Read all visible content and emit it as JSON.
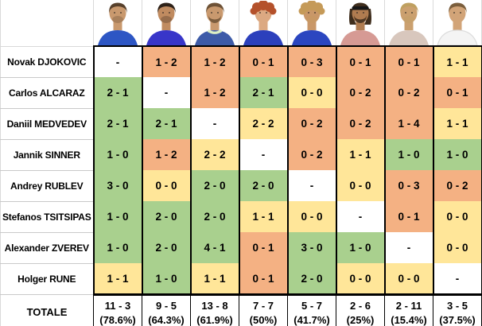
{
  "table": {
    "corner_label": "",
    "colors": {
      "win": "#A9D08E",
      "loss": "#F4B183",
      "tie": "#FFE699",
      "none": "#FFFFFF"
    },
    "grid_black": "#000000",
    "grid_gray": "#D9D9D9",
    "players": [
      {
        "id": "djokovic",
        "name": "Novak DJOKOVIC",
        "avatar": {
          "skin": "#C9996E",
          "hair": "#57402B",
          "shirt": "#2D56C4",
          "style": "short",
          "beard": "light"
        }
      },
      {
        "id": "alcaraz",
        "name": "Carlos ALCARAZ",
        "avatar": {
          "skin": "#C08B60",
          "hair": "#2E2118",
          "shirt": "#3836C9",
          "style": "short",
          "beard": "light"
        }
      },
      {
        "id": "medvedev",
        "name": "Daniil MEDVEDEV",
        "avatar": {
          "skin": "#C9996E",
          "hair": "#6E5236",
          "shirt": "#3D5BA8",
          "style": "short",
          "beard": "full",
          "collar": "#DCEFC4"
        }
      },
      {
        "id": "sinner",
        "name": "Jannik SINNER",
        "avatar": {
          "skin": "#DCA982",
          "hair": "#B4512B",
          "shirt": "#2C40BC",
          "style": "curly",
          "beard": "none"
        }
      },
      {
        "id": "rublev",
        "name": "Andrey RUBLEV",
        "avatar": {
          "skin": "#C99768",
          "hair": "#C59A58",
          "shirt": "#2B46C0",
          "style": "curly",
          "beard": "light"
        }
      },
      {
        "id": "tsitsipas",
        "name": "Stefanos TSITSIPAS",
        "avatar": {
          "skin": "#B07C50",
          "hair": "#3F2E1D",
          "shirt": "#D69A94",
          "style": "headband",
          "beard": "full",
          "headband": "#161616"
        }
      },
      {
        "id": "zverev",
        "name": "Alexander ZVEREV",
        "avatar": {
          "skin": "#CBA06F",
          "hair": "#BFA060",
          "shirt": "#D8C7BD",
          "style": "short",
          "beard": "light"
        }
      },
      {
        "id": "rune",
        "name": "Holger RUNE",
        "avatar": {
          "skin": "#D2A478",
          "hair": "#7B5E3C",
          "shirt": "#F4F4F4",
          "style": "short",
          "beard": "none",
          "shirtStroke": "#DCDCDC"
        }
      }
    ],
    "rows": [
      {
        "cells": [
          {
            "v": "-",
            "c": "none"
          },
          {
            "v": "1 - 2",
            "c": "loss"
          },
          {
            "v": "1 - 2",
            "c": "loss"
          },
          {
            "v": "0 - 1",
            "c": "loss"
          },
          {
            "v": "0 - 3",
            "c": "loss"
          },
          {
            "v": "0 - 1",
            "c": "loss"
          },
          {
            "v": "0 - 1",
            "c": "loss"
          },
          {
            "v": "1 - 1",
            "c": "tie"
          }
        ]
      },
      {
        "cells": [
          {
            "v": "2 - 1",
            "c": "win"
          },
          {
            "v": "-",
            "c": "none"
          },
          {
            "v": "1 - 2",
            "c": "loss"
          },
          {
            "v": "2 - 1",
            "c": "win"
          },
          {
            "v": "0 - 0",
            "c": "tie"
          },
          {
            "v": "0 - 2",
            "c": "loss"
          },
          {
            "v": "0 - 2",
            "c": "loss"
          },
          {
            "v": "0 - 1",
            "c": "loss"
          }
        ]
      },
      {
        "cells": [
          {
            "v": "2 - 1",
            "c": "win"
          },
          {
            "v": "2 - 1",
            "c": "win"
          },
          {
            "v": "-",
            "c": "none"
          },
          {
            "v": "2 - 2",
            "c": "tie"
          },
          {
            "v": "0 - 2",
            "c": "loss"
          },
          {
            "v": "0 - 2",
            "c": "loss"
          },
          {
            "v": "1 - 4",
            "c": "loss"
          },
          {
            "v": "1 - 1",
            "c": "tie"
          }
        ]
      },
      {
        "cells": [
          {
            "v": "1 - 0",
            "c": "win"
          },
          {
            "v": "1 - 2",
            "c": "loss"
          },
          {
            "v": "2 - 2",
            "c": "tie"
          },
          {
            "v": "-",
            "c": "none"
          },
          {
            "v": "0 - 2",
            "c": "loss"
          },
          {
            "v": "1 - 1",
            "c": "tie"
          },
          {
            "v": "1 - 0",
            "c": "win"
          },
          {
            "v": "1 - 0",
            "c": "win"
          }
        ]
      },
      {
        "cells": [
          {
            "v": "3 - 0",
            "c": "win"
          },
          {
            "v": "0 - 0",
            "c": "tie"
          },
          {
            "v": "2 - 0",
            "c": "win"
          },
          {
            "v": "2 - 0",
            "c": "win"
          },
          {
            "v": "-",
            "c": "none"
          },
          {
            "v": "0 - 0",
            "c": "tie"
          },
          {
            "v": "0 - 3",
            "c": "loss"
          },
          {
            "v": "0 - 2",
            "c": "loss"
          }
        ]
      },
      {
        "cells": [
          {
            "v": "1 - 0",
            "c": "win"
          },
          {
            "v": "2 - 0",
            "c": "win"
          },
          {
            "v": "2 - 0",
            "c": "win"
          },
          {
            "v": "1 - 1",
            "c": "tie"
          },
          {
            "v": "0 - 0",
            "c": "tie"
          },
          {
            "v": "-",
            "c": "none"
          },
          {
            "v": "0 - 1",
            "c": "loss"
          },
          {
            "v": "0 - 0",
            "c": "tie"
          }
        ]
      },
      {
        "cells": [
          {
            "v": "1 - 0",
            "c": "win"
          },
          {
            "v": "2 - 0",
            "c": "win"
          },
          {
            "v": "4 - 1",
            "c": "win"
          },
          {
            "v": "0 - 1",
            "c": "loss"
          },
          {
            "v": "3 - 0",
            "c": "win"
          },
          {
            "v": "1 - 0",
            "c": "win"
          },
          {
            "v": "-",
            "c": "none"
          },
          {
            "v": "0 - 0",
            "c": "tie"
          }
        ]
      },
      {
        "cells": [
          {
            "v": "1 - 1",
            "c": "tie"
          },
          {
            "v": "1 - 0",
            "c": "win"
          },
          {
            "v": "1 - 1",
            "c": "tie"
          },
          {
            "v": "0 - 1",
            "c": "loss"
          },
          {
            "v": "2 - 0",
            "c": "win"
          },
          {
            "v": "0 - 0",
            "c": "tie"
          },
          {
            "v": "0 - 0",
            "c": "tie"
          },
          {
            "v": "-",
            "c": "none"
          }
        ]
      }
    ],
    "totals": {
      "label": "TOTALE",
      "cells": [
        {
          "record": "11 - 3",
          "pct": "(78.6%)"
        },
        {
          "record": "9 - 5",
          "pct": "(64.3%)"
        },
        {
          "record": "13 - 8",
          "pct": "(61.9%)"
        },
        {
          "record": "7 - 7",
          "pct": "(50%)"
        },
        {
          "record": "5 - 7",
          "pct": "(41.7%)"
        },
        {
          "record": "2 - 6",
          "pct": "(25%)"
        },
        {
          "record": "2 - 11",
          "pct": "(15.4%)"
        },
        {
          "record": "3 - 5",
          "pct": "(37.5%)"
        }
      ]
    }
  }
}
